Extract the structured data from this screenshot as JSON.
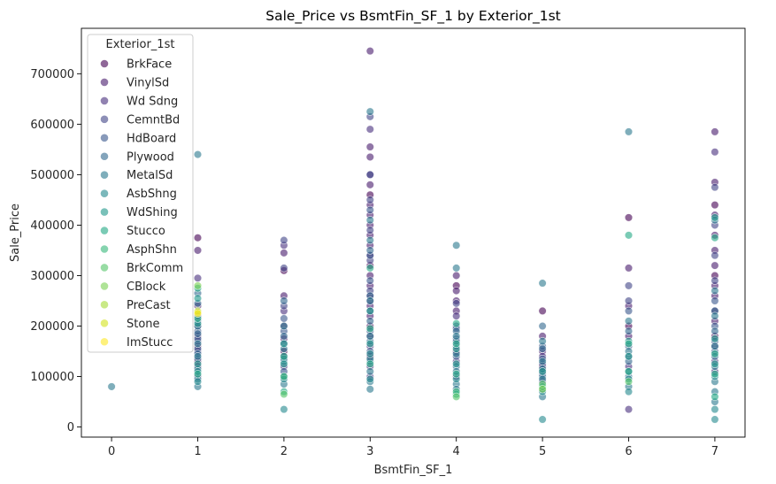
{
  "chart_data": {
    "type": "scatter",
    "title": "Sale_Price vs BsmtFin_SF_1 by Exterior_1st",
    "xlabel": "BsmtFin_SF_1",
    "ylabel": "Sale_Price",
    "xlim": [
      -0.35,
      7.35
    ],
    "ylim": [
      -20000,
      790000
    ],
    "xticks": [
      0,
      1,
      2,
      3,
      4,
      5,
      6,
      7
    ],
    "yticks": [
      0,
      100000,
      200000,
      300000,
      400000,
      500000,
      600000,
      700000
    ],
    "grid": false,
    "marker_alpha": 0.6,
    "legend": {
      "title": "Exterior_1st",
      "placement": "top-left",
      "entries": [
        {
          "name": "BrkFace",
          "color": "#440154"
        },
        {
          "name": "VinylSd",
          "color": "#481a6c"
        },
        {
          "name": "Wd Sdng",
          "color": "#472f7d"
        },
        {
          "name": "CemntBd",
          "color": "#414487"
        },
        {
          "name": "HdBoard",
          "color": "#39568c"
        },
        {
          "name": "Plywood",
          "color": "#31688e"
        },
        {
          "name": "MetalSd",
          "color": "#2a788e"
        },
        {
          "name": "AsbShng",
          "color": "#23888e"
        },
        {
          "name": "WdShing",
          "color": "#1f988b"
        },
        {
          "name": "Stucco",
          "color": "#22a884"
        },
        {
          "name": "AsphShn",
          "color": "#35b779"
        },
        {
          "name": "BrkComm",
          "color": "#54c568"
        },
        {
          "name": "CBlock",
          "color": "#7ad151"
        },
        {
          "name": "PreCast",
          "color": "#a5db36"
        },
        {
          "name": "Stone",
          "color": "#d2e21b"
        },
        {
          "name": "ImStucc",
          "color": "#fde725"
        }
      ]
    },
    "series": [
      {
        "name": "BrkFace",
        "points": [
          [
            1,
            375000
          ],
          [
            1,
            160000
          ],
          [
            1,
            130000
          ],
          [
            2,
            310000
          ],
          [
            2,
            150000
          ],
          [
            3,
            460000
          ],
          [
            3,
            320000
          ],
          [
            3,
            200000
          ],
          [
            3,
            140000
          ],
          [
            4,
            280000
          ],
          [
            4,
            150000
          ],
          [
            5,
            230000
          ],
          [
            5,
            120000
          ],
          [
            6,
            415000
          ],
          [
            6,
            200000
          ],
          [
            7,
            440000
          ],
          [
            7,
            300000
          ],
          [
            7,
            180000
          ]
        ]
      },
      {
        "name": "VinylSd",
        "points": [
          [
            1,
            350000
          ],
          [
            1,
            240000
          ],
          [
            1,
            200000
          ],
          [
            1,
            180000
          ],
          [
            2,
            345000
          ],
          [
            2,
            260000
          ],
          [
            2,
            200000
          ],
          [
            2,
            175000
          ],
          [
            3,
            745000
          ],
          [
            3,
            555000
          ],
          [
            3,
            535000
          ],
          [
            3,
            480000
          ],
          [
            3,
            440000
          ],
          [
            3,
            420000
          ],
          [
            3,
            400000
          ],
          [
            3,
            380000
          ],
          [
            3,
            360000
          ],
          [
            3,
            340000
          ],
          [
            3,
            300000
          ],
          [
            3,
            280000
          ],
          [
            3,
            260000
          ],
          [
            3,
            240000
          ],
          [
            3,
            220000
          ],
          [
            3,
            180000
          ],
          [
            4,
            300000
          ],
          [
            4,
            270000
          ],
          [
            4,
            250000
          ],
          [
            4,
            230000
          ],
          [
            5,
            180000
          ],
          [
            5,
            150000
          ],
          [
            6,
            315000
          ],
          [
            6,
            240000
          ],
          [
            6,
            180000
          ],
          [
            7,
            585000
          ],
          [
            7,
            485000
          ],
          [
            7,
            420000
          ],
          [
            7,
            380000
          ],
          [
            7,
            350000
          ],
          [
            7,
            320000
          ],
          [
            7,
            280000
          ],
          [
            7,
            260000
          ],
          [
            7,
            230000
          ],
          [
            7,
            210000
          ]
        ]
      },
      {
        "name": "Wd Sdng",
        "points": [
          [
            1,
            295000
          ],
          [
            1,
            150000
          ],
          [
            1,
            120000
          ],
          [
            1,
            100000
          ],
          [
            2,
            360000
          ],
          [
            2,
            230000
          ],
          [
            2,
            140000
          ],
          [
            2,
            120000
          ],
          [
            3,
            590000
          ],
          [
            3,
            500000
          ],
          [
            3,
            250000
          ],
          [
            3,
            160000
          ],
          [
            3,
            120000
          ],
          [
            3,
            100000
          ],
          [
            4,
            220000
          ],
          [
            4,
            130000
          ],
          [
            4,
            100000
          ],
          [
            5,
            140000
          ],
          [
            5,
            110000
          ],
          [
            5,
            90000
          ],
          [
            6,
            120000
          ],
          [
            6,
            35000
          ],
          [
            7,
            545000
          ],
          [
            7,
            160000
          ],
          [
            7,
            130000
          ],
          [
            7,
            110000
          ]
        ]
      },
      {
        "name": "CemntBd",
        "points": [
          [
            1,
            220000
          ],
          [
            1,
            170000
          ],
          [
            2,
            370000
          ],
          [
            2,
            315000
          ],
          [
            2,
            240000
          ],
          [
            3,
            615000
          ],
          [
            3,
            500000
          ],
          [
            3,
            450000
          ],
          [
            3,
            390000
          ],
          [
            3,
            330000
          ],
          [
            3,
            270000
          ],
          [
            4,
            245000
          ],
          [
            4,
            200000
          ],
          [
            5,
            125000
          ],
          [
            6,
            280000
          ],
          [
            6,
            250000
          ],
          [
            7,
            475000
          ],
          [
            7,
            400000
          ],
          [
            7,
            340000
          ],
          [
            7,
            290000
          ]
        ]
      },
      {
        "name": "HdBoard",
        "points": [
          [
            1,
            210000
          ],
          [
            1,
            190000
          ],
          [
            1,
            175000
          ],
          [
            1,
            155000
          ],
          [
            1,
            135000
          ],
          [
            2,
            215000
          ],
          [
            2,
            190000
          ],
          [
            2,
            165000
          ],
          [
            2,
            110000
          ],
          [
            3,
            430000
          ],
          [
            3,
            340000
          ],
          [
            3,
            290000
          ],
          [
            3,
            230000
          ],
          [
            3,
            190000
          ],
          [
            3,
            150000
          ],
          [
            4,
            195000
          ],
          [
            4,
            175000
          ],
          [
            4,
            160000
          ],
          [
            4,
            140000
          ],
          [
            5,
            160000
          ],
          [
            5,
            135000
          ],
          [
            5,
            105000
          ],
          [
            6,
            230000
          ],
          [
            6,
            160000
          ],
          [
            6,
            140000
          ],
          [
            7,
            250000
          ],
          [
            7,
            200000
          ],
          [
            7,
            170000
          ],
          [
            7,
            150000
          ]
        ]
      },
      {
        "name": "Plywood",
        "points": [
          [
            1,
            265000
          ],
          [
            1,
            245000
          ],
          [
            1,
            185000
          ],
          [
            1,
            145000
          ],
          [
            2,
            250000
          ],
          [
            2,
            180000
          ],
          [
            2,
            130000
          ],
          [
            3,
            350000
          ],
          [
            3,
            260000
          ],
          [
            3,
            210000
          ],
          [
            3,
            170000
          ],
          [
            3,
            130000
          ],
          [
            4,
            190000
          ],
          [
            4,
            170000
          ],
          [
            4,
            120000
          ],
          [
            5,
            200000
          ],
          [
            5,
            155000
          ],
          [
            5,
            100000
          ],
          [
            6,
            190000
          ],
          [
            6,
            130000
          ],
          [
            6,
            100000
          ],
          [
            7,
            230000
          ],
          [
            7,
            190000
          ],
          [
            7,
            140000
          ]
        ]
      },
      {
        "name": "MetalSd",
        "points": [
          [
            1,
            540000
          ],
          [
            1,
            200000
          ],
          [
            1,
            165000
          ],
          [
            1,
            140000
          ],
          [
            1,
            115000
          ],
          [
            1,
            95000
          ],
          [
            1,
            80000
          ],
          [
            2,
            200000
          ],
          [
            2,
            155000
          ],
          [
            2,
            135000
          ],
          [
            2,
            100000
          ],
          [
            2,
            85000
          ],
          [
            3,
            625000
          ],
          [
            3,
            410000
          ],
          [
            3,
            370000
          ],
          [
            3,
            250000
          ],
          [
            3,
            180000
          ],
          [
            3,
            135000
          ],
          [
            3,
            110000
          ],
          [
            3,
            90000
          ],
          [
            3,
            75000
          ],
          [
            4,
            360000
          ],
          [
            4,
            315000
          ],
          [
            4,
            180000
          ],
          [
            4,
            145000
          ],
          [
            4,
            110000
          ],
          [
            4,
            85000
          ],
          [
            4,
            75000
          ],
          [
            5,
            285000
          ],
          [
            5,
            170000
          ],
          [
            5,
            130000
          ],
          [
            5,
            115000
          ],
          [
            5,
            95000
          ],
          [
            5,
            75000
          ],
          [
            5,
            60000
          ],
          [
            6,
            585000
          ],
          [
            6,
            210000
          ],
          [
            6,
            150000
          ],
          [
            6,
            110000
          ],
          [
            6,
            80000
          ],
          [
            7,
            410000
          ],
          [
            7,
            270000
          ],
          [
            7,
            220000
          ],
          [
            7,
            160000
          ],
          [
            7,
            120000
          ],
          [
            7,
            90000
          ],
          [
            7,
            70000
          ],
          [
            7,
            50000
          ]
        ]
      },
      {
        "name": "AsbShng",
        "points": [
          [
            1,
            110000
          ],
          [
            1,
            90000
          ],
          [
            2,
            95000
          ],
          [
            2,
            35000
          ],
          [
            3,
            145000
          ],
          [
            3,
            95000
          ],
          [
            4,
            95000
          ],
          [
            5,
            70000
          ],
          [
            5,
            15000
          ],
          [
            6,
            95000
          ],
          [
            6,
            70000
          ],
          [
            7,
            100000
          ],
          [
            7,
            15000
          ],
          [
            7,
            35000
          ]
        ]
      },
      {
        "name": "WdShing",
        "points": [
          [
            1,
            255000
          ],
          [
            1,
            205000
          ],
          [
            1,
            125000
          ],
          [
            2,
            165000
          ],
          [
            2,
            125000
          ],
          [
            3,
            230000
          ],
          [
            3,
            165000
          ],
          [
            4,
            155000
          ],
          [
            4,
            125000
          ],
          [
            5,
            110000
          ],
          [
            6,
            170000
          ],
          [
            6,
            140000
          ],
          [
            7,
            415000
          ],
          [
            7,
            175000
          ],
          [
            7,
            125000
          ]
        ]
      },
      {
        "name": "Stucco",
        "points": [
          [
            1,
            275000
          ],
          [
            1,
            215000
          ],
          [
            1,
            105000
          ],
          [
            2,
            140000
          ],
          [
            2,
            70000
          ],
          [
            3,
            315000
          ],
          [
            3,
            195000
          ],
          [
            3,
            125000
          ],
          [
            4,
            205000
          ],
          [
            4,
            165000
          ],
          [
            4,
            105000
          ],
          [
            4,
            65000
          ],
          [
            5,
            80000
          ],
          [
            6,
            380000
          ],
          [
            6,
            165000
          ],
          [
            6,
            110000
          ],
          [
            7,
            375000
          ],
          [
            7,
            145000
          ],
          [
            7,
            105000
          ],
          [
            7,
            60000
          ]
        ]
      },
      {
        "name": "AsphShn",
        "points": [
          [
            2,
            100000
          ],
          [
            4,
            70000
          ]
        ]
      },
      {
        "name": "BrkComm",
        "points": [
          [
            2,
            65000
          ],
          [
            4,
            60000
          ],
          [
            5,
            85000
          ],
          [
            6,
            90000
          ]
        ]
      },
      {
        "name": "CBlock",
        "points": [
          [
            1,
            280000
          ],
          [
            5,
            75000
          ]
        ]
      },
      {
        "name": "PreCast",
        "points": [
          [
            1,
            230000
          ]
        ]
      },
      {
        "name": "Stone",
        "points": [
          [
            1,
            228000
          ]
        ]
      },
      {
        "name": "ImStucc",
        "points": [
          [
            1,
            225000
          ]
        ]
      },
      {
        "name": "MetalSd",
        "points": [
          [
            0,
            80000
          ]
        ]
      }
    ]
  }
}
